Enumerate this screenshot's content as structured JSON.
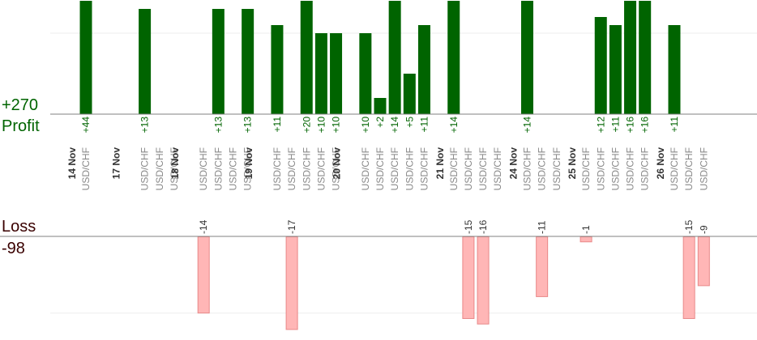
{
  "summary": {
    "profit_total": "+270",
    "profit_label": "Profit",
    "loss_label": "Loss",
    "loss_total": "-98"
  },
  "colors": {
    "profit_bar": "#006400",
    "loss_bar": "#ffb6b6",
    "loss_bar_border": "#e88888",
    "baseline": "#808080",
    "gridline": "#eeeeee",
    "profit_text": "#006400",
    "date_text": "#333333",
    "pair_text": "#888888",
    "loss_text": "#333333"
  },
  "chart_data": {
    "type": "bar",
    "profit_axis_max": 14,
    "loss_axis_max": 17,
    "grid": true,
    "dates": [
      {
        "label": "14 Nov",
        "slot": 0
      },
      {
        "label": "17 Nov",
        "slot": 3
      },
      {
        "label": "18 Nov",
        "slot": 7
      },
      {
        "label": "19 Nov",
        "slot": 12
      },
      {
        "label": "20 Nov",
        "slot": 18
      },
      {
        "label": "21 Nov",
        "slot": 25
      },
      {
        "label": "24 Nov",
        "slot": 30
      },
      {
        "label": "25 Nov",
        "slot": 34
      },
      {
        "label": "26 Nov",
        "slot": 40
      }
    ],
    "trades": [
      {
        "pair": "USD/CHF",
        "value": 44
      },
      {
        "pair": "",
        "value": null
      },
      {
        "pair": "",
        "value": null
      },
      {
        "pair": "",
        "value": null
      },
      {
        "pair": "USD/CHF",
        "value": 13
      },
      {
        "pair": "USD/CHF",
        "value": null
      },
      {
        "pair": "USD/CHF",
        "value": null
      },
      {
        "pair": "",
        "value": null
      },
      {
        "pair": "USD/CHF",
        "value": -14
      },
      {
        "pair": "USD/CHF",
        "value": 13
      },
      {
        "pair": "USD/CHF",
        "value": null
      },
      {
        "pair": "USD/CHF",
        "value": 13
      },
      {
        "pair": "",
        "value": null
      },
      {
        "pair": "USD/CHF",
        "value": 11
      },
      {
        "pair": "USD/CHF",
        "value": -17
      },
      {
        "pair": "USD/CHF",
        "value": 20
      },
      {
        "pair": "USD/CHF",
        "value": 10
      },
      {
        "pair": "USD/CHF",
        "value": 10
      },
      {
        "pair": "",
        "value": null
      },
      {
        "pair": "USD/CHF",
        "value": 10
      },
      {
        "pair": "USD/CHF",
        "value": 2
      },
      {
        "pair": "USD/CHF",
        "value": 14
      },
      {
        "pair": "USD/CHF",
        "value": 5
      },
      {
        "pair": "USD/CHF",
        "value": 11
      },
      {
        "pair": "",
        "value": null
      },
      {
        "pair": "USD/CHF",
        "value": 14
      },
      {
        "pair": "USD/CHF",
        "value": -15
      },
      {
        "pair": "USD/CHF",
        "value": -16
      },
      {
        "pair": "USD/CHF",
        "value": null
      },
      {
        "pair": "",
        "value": null
      },
      {
        "pair": "USD/CHF",
        "value": 14
      },
      {
        "pair": "USD/CHF",
        "value": -11
      },
      {
        "pair": "USD/CHF",
        "value": null
      },
      {
        "pair": "",
        "value": null
      },
      {
        "pair": "USD/CHF",
        "value": -1
      },
      {
        "pair": "USD/CHF",
        "value": 12
      },
      {
        "pair": "USD/CHF",
        "value": 11
      },
      {
        "pair": "USD/CHF",
        "value": 16
      },
      {
        "pair": "USD/CHF",
        "value": 16
      },
      {
        "pair": "",
        "value": null
      },
      {
        "pair": "USD/CHF",
        "value": 11
      },
      {
        "pair": "USD/CHF",
        "value": -15
      },
      {
        "pair": "USD/CHF",
        "value": -9
      }
    ]
  }
}
